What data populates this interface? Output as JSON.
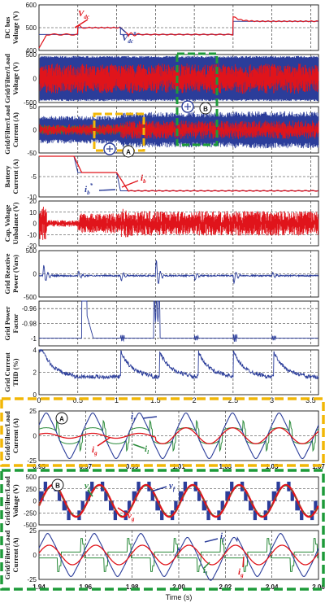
{
  "colors": {
    "red": "#e0141b",
    "blue": "#2b3d9a",
    "green": "#2a8a3a",
    "yellow": "#f2b707",
    "dgreen": "#1e9b3a",
    "black": "#111111"
  },
  "x_label": "Time (s)",
  "chart_data": [
    {
      "type": "line",
      "id": "p1",
      "ylabel": [
        "DC bus",
        "Voltage (V)"
      ],
      "xlim": [
        0,
        3.6
      ],
      "ylim": [
        400,
        600
      ],
      "yticks": [
        400,
        500,
        600
      ],
      "series": [
        {
          "name": "v_dc",
          "color": "red"
        },
        {
          "name": "v_dc*",
          "color": "blue"
        }
      ],
      "annotations": {
        "a": "V",
        "a_sub": "dc",
        "b": "V",
        "b_sub": "dc",
        "b_sup": "*"
      },
      "points": [
        [
          0,
          410
        ],
        [
          0.05,
          460
        ],
        [
          0.1,
          470
        ],
        [
          0.3,
          472
        ],
        [
          0.5,
          478
        ],
        [
          0.6,
          503
        ],
        [
          0.8,
          500
        ],
        [
          1.05,
          500
        ],
        [
          1.1,
          470
        ],
        [
          1.5,
          468
        ],
        [
          2.48,
          468
        ],
        [
          2.5,
          525
        ],
        [
          2.6,
          545
        ],
        [
          2.8,
          528
        ],
        [
          3.6,
          528
        ]
      ],
      "ref_points": [
        [
          0,
          470
        ],
        [
          0.5,
          470
        ],
        [
          0.5,
          500
        ],
        [
          1.05,
          500
        ],
        [
          1.05,
          470
        ],
        [
          2.5,
          470
        ],
        [
          2.5,
          528
        ],
        [
          3.6,
          528
        ]
      ]
    },
    {
      "type": "line",
      "id": "p2",
      "ylabel": [
        "Grid/Filter/Load",
        "Voltage (V)"
      ],
      "xlim": [
        0,
        3.6
      ],
      "ylim": [
        -500,
        500
      ],
      "yticks": [
        500,
        0,
        -500
      ]
    },
    {
      "type": "line",
      "id": "p3",
      "ylabel": [
        "Grid/Filter/Load",
        "Current (A)"
      ],
      "xlim": [
        0,
        3.6
      ],
      "ylim": [
        -50,
        50
      ],
      "yticks": [
        50,
        0,
        -50
      ]
    },
    {
      "type": "line",
      "id": "p4",
      "ylabel": [
        "Battery",
        "Current (A)"
      ],
      "xlim": [
        0,
        3.6
      ],
      "ylim": [
        -10,
        0
      ],
      "yticks": [
        -5,
        -10
      ],
      "annotations": {
        "a": "i",
        "a_sub": "b",
        "b": "i",
        "b_sub": "b",
        "b_sup": "*"
      },
      "points": [
        [
          0,
          0
        ],
        [
          0.45,
          0
        ],
        [
          0.5,
          -4
        ],
        [
          1.0,
          -4
        ],
        [
          1.05,
          -8.5
        ],
        [
          3.6,
          -8.5
        ]
      ]
    },
    {
      "type": "line",
      "id": "p5",
      "ylabel": [
        "Cap. Voltage",
        "Unbalance (V)"
      ],
      "xlim": [
        0,
        3.6
      ],
      "ylim": [
        -20,
        20
      ],
      "yticks": [
        20,
        10,
        0,
        -10,
        -20
      ]
    },
    {
      "type": "line",
      "id": "p6",
      "ylabel": [
        "Grid Reactive",
        "Power (Vars)"
      ],
      "xlim": [
        0,
        3.6
      ],
      "ylim": [
        -500,
        500
      ],
      "yticks": [
        500,
        0,
        -500
      ]
    },
    {
      "type": "line",
      "id": "p7",
      "ylabel": [
        "Grid Power",
        "Factor"
      ],
      "xlim": [
        0,
        3.6
      ],
      "ylim": [
        -1.01,
        -0.95
      ],
      "yticks": [
        -0.96,
        -0.98,
        -1
      ]
    },
    {
      "type": "line",
      "id": "p8",
      "ylabel": [
        "Grid Current",
        "THD (%)"
      ],
      "xlim": [
        0,
        3.6
      ],
      "ylim": [
        0,
        4
      ],
      "yticks": [
        0,
        2,
        4
      ],
      "xticks": [
        0,
        0.5,
        1,
        1.5,
        2,
        2.5,
        3,
        3.5
      ]
    },
    {
      "type": "line",
      "id": "zA",
      "ylabel": [
        "Grid/Filter/Load",
        "Current (A)"
      ],
      "xlim": [
        0.95,
        1.07
      ],
      "ylim": [
        -25,
        25
      ],
      "yticks": [
        25,
        0,
        -25
      ],
      "xticks": [
        0.95,
        0.97,
        0.99,
        1.01,
        1.03,
        1.05,
        1.07
      ],
      "label": "A",
      "annotations": {
        "f": "f",
        "l": "l",
        "g": "g"
      }
    },
    {
      "type": "line",
      "id": "zB1",
      "ylabel": [
        "Grid/Filter/Load",
        "Voltage (V)"
      ],
      "xlim": [
        1.94,
        2.06
      ],
      "ylim": [
        -500,
        500
      ],
      "yticks": [
        500,
        250,
        0,
        -250,
        -500
      ],
      "label": "B",
      "annotations": {
        "l": "l",
        "f": "f",
        "g": "g"
      }
    },
    {
      "type": "line",
      "id": "zB2",
      "ylabel": [
        "Grid/Filter/Load",
        "Current (A)"
      ],
      "xlim": [
        1.94,
        2.06
      ],
      "ylim": [
        -25,
        25
      ],
      "yticks": [
        25,
        0,
        -25
      ],
      "xticks": [
        1.94,
        1.96,
        1.98,
        2.0,
        2.02,
        2.04,
        2.06
      ],
      "annotations": {
        "f": "f",
        "l": "l",
        "g": "g"
      }
    }
  ]
}
